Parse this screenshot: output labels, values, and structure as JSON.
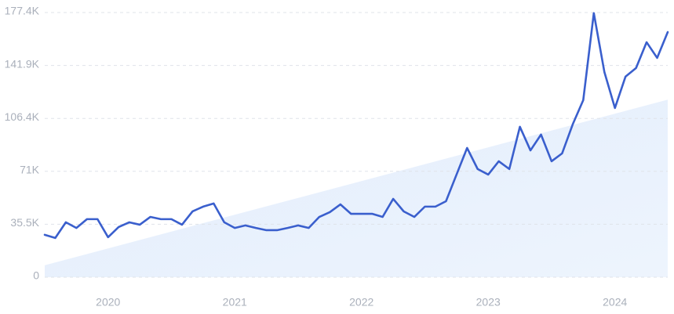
{
  "chart_data": {
    "type": "line",
    "categories": [
      null,
      null,
      null,
      null,
      null,
      null,
      "2020",
      null,
      null,
      null,
      null,
      null,
      null,
      null,
      null,
      null,
      null,
      null,
      "2021",
      null,
      null,
      null,
      null,
      null,
      null,
      null,
      null,
      null,
      null,
      null,
      "2022",
      null,
      null,
      null,
      null,
      null,
      null,
      null,
      null,
      null,
      null,
      null,
      "2023",
      null,
      null,
      null,
      null,
      null,
      null,
      null,
      null,
      null,
      null,
      null,
      "2024",
      null,
      null,
      null,
      null,
      null
    ],
    "values": [
      28400,
      26300,
      36800,
      33000,
      38900,
      38900,
      26800,
      33600,
      36800,
      35200,
      40400,
      38900,
      38900,
      35200,
      44100,
      47300,
      49400,
      36800,
      33000,
      34700,
      33000,
      31500,
      31500,
      33000,
      34700,
      33000,
      40400,
      43600,
      48800,
      42500,
      42500,
      42500,
      40400,
      52500,
      44100,
      40400,
      47300,
      47300,
      50900,
      68800,
      86600,
      72500,
      68800,
      77700,
      72500,
      100800,
      85000,
      95600,
      77700,
      83000,
      102400,
      118700,
      177000,
      137600,
      113400,
      134400,
      140200,
      157500,
      147000,
      164300
    ],
    "color": "#3a5fcd",
    "trend": [
      8000,
      119000
    ],
    "trend_color": "#e2edfc",
    "ylim": [
      0,
      177400
    ],
    "yticks": [
      {
        "value": 0,
        "label": "0"
      },
      {
        "value": 35500,
        "label": "35.5K"
      },
      {
        "value": 71000,
        "label": "71K"
      },
      {
        "value": 106400,
        "label": "106.4K"
      },
      {
        "value": 141900,
        "label": "141.9K"
      },
      {
        "value": 177400,
        "label": "177.4K"
      }
    ],
    "grid": true
  }
}
